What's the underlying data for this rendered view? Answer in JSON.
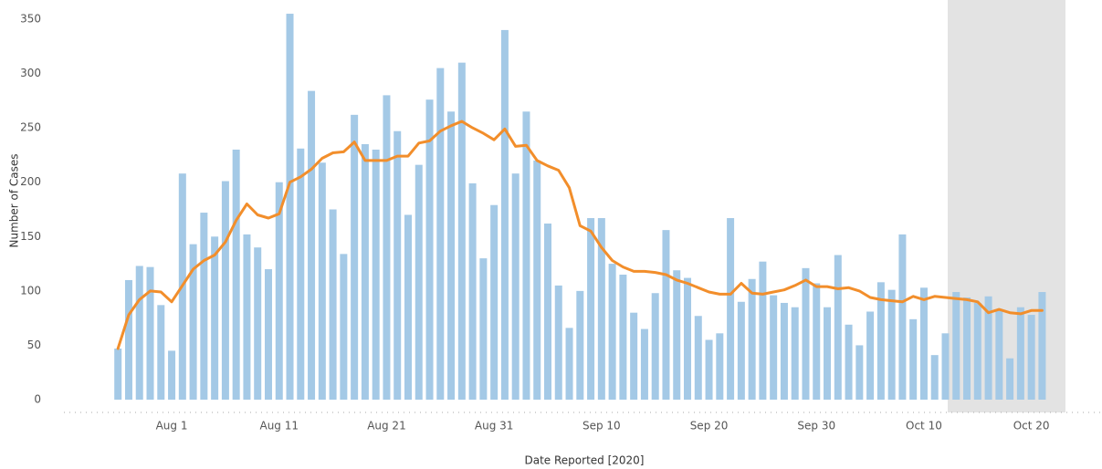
{
  "chart_data": {
    "type": "bar",
    "x_label": "Date Reported [2020]",
    "y_label": "Number of Cases",
    "categories": [
      null,
      null,
      null,
      null,
      null,
      "Aug 1",
      null,
      null,
      null,
      null,
      null,
      null,
      null,
      null,
      null,
      "Aug 11",
      null,
      null,
      null,
      null,
      null,
      null,
      null,
      null,
      null,
      "Aug 21",
      null,
      null,
      null,
      null,
      null,
      null,
      null,
      null,
      null,
      "Aug 31",
      null,
      null,
      null,
      null,
      null,
      null,
      null,
      null,
      null,
      "Sep 10",
      null,
      null,
      null,
      null,
      null,
      null,
      null,
      null,
      null,
      "Sep 20",
      null,
      null,
      null,
      null,
      null,
      null,
      null,
      null,
      null,
      "Sep 30",
      null,
      null,
      null,
      null,
      null,
      null,
      null,
      null,
      null,
      "Oct 10",
      null,
      null,
      null,
      null,
      null,
      null,
      null,
      null,
      null,
      "Oct 20",
      null
    ],
    "series": [
      {
        "type": "bar",
        "color": "#a4c9e6",
        "values": [
          47,
          110,
          123,
          122,
          87,
          45,
          208,
          143,
          172,
          150,
          201,
          230,
          152,
          140,
          120,
          200,
          355,
          231,
          284,
          218,
          175,
          134,
          262,
          235,
          230,
          280,
          247,
          170,
          216,
          276,
          305,
          265,
          310,
          199,
          130,
          179,
          340,
          208,
          265,
          220,
          162,
          105,
          66,
          100,
          167,
          167,
          125,
          115,
          80,
          65,
          98,
          156,
          119,
          112,
          77,
          55,
          61,
          167,
          90,
          111,
          127,
          96,
          89,
          85,
          121,
          107,
          85,
          133,
          69,
          50,
          81,
          108,
          101,
          152,
          74,
          103,
          41,
          61,
          99,
          94,
          89,
          95,
          82,
          38,
          85,
          78,
          99
        ]
      },
      {
        "type": "line",
        "color": "#f28e2b",
        "values": [
          47,
          78,
          92,
          100,
          99,
          90,
          105,
          120,
          128,
          133,
          145,
          165,
          180,
          170,
          167,
          171,
          200,
          205,
          212,
          222,
          227,
          228,
          237,
          220,
          220,
          220,
          224,
          224,
          236,
          238,
          247,
          252,
          256,
          250,
          245,
          239,
          249,
          233,
          234,
          220,
          215,
          211,
          195,
          160,
          155,
          140,
          128,
          122,
          118,
          118,
          117,
          115,
          110,
          107,
          103,
          99,
          97,
          97,
          107,
          98,
          97,
          99,
          101,
          105,
          110,
          104,
          104,
          102,
          103,
          100,
          94,
          92,
          91,
          90,
          95,
          92,
          95,
          94,
          93,
          92,
          90,
          80,
          83,
          80,
          79,
          82,
          82
        ]
      }
    ],
    "ylim": [
      0,
      350
    ],
    "yticks": [
      0,
      50,
      100,
      150,
      200,
      250,
      300,
      350
    ],
    "grid": false
  }
}
